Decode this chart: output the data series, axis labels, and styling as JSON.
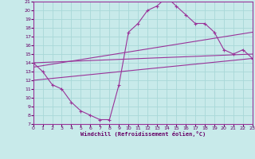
{
  "xlabel": "Windchill (Refroidissement éolien,°C)",
  "xlim": [
    0,
    23
  ],
  "ylim": [
    7,
    21
  ],
  "yticks": [
    7,
    8,
    9,
    10,
    11,
    12,
    13,
    14,
    15,
    16,
    17,
    18,
    19,
    20,
    21
  ],
  "xticks": [
    0,
    1,
    2,
    3,
    4,
    5,
    6,
    7,
    8,
    9,
    10,
    11,
    12,
    13,
    14,
    15,
    16,
    17,
    18,
    19,
    20,
    21,
    22,
    23
  ],
  "background_color": "#c8eaea",
  "grid_color": "#a8d8d8",
  "line_color": "#993399",
  "line1_x": [
    0,
    1,
    2,
    3,
    4,
    5,
    6,
    7,
    8,
    9,
    10,
    11,
    12,
    13,
    14,
    15,
    16,
    17,
    18,
    19,
    20,
    21,
    22,
    23
  ],
  "line1_y": [
    14,
    13,
    11.5,
    11,
    9.5,
    8.5,
    8,
    7.5,
    7.5,
    11.5,
    17.5,
    18.5,
    20,
    20.5,
    21.5,
    20.5,
    19.5,
    18.5,
    18.5,
    17.5,
    15.5,
    15,
    15.5,
    14.5
  ],
  "line2_x": [
    0,
    23
  ],
  "line2_y": [
    14.0,
    15.0
  ],
  "line3_x": [
    0,
    23
  ],
  "line3_y": [
    13.5,
    17.5
  ],
  "line4_x": [
    0,
    23
  ],
  "line4_y": [
    12.0,
    14.5
  ]
}
